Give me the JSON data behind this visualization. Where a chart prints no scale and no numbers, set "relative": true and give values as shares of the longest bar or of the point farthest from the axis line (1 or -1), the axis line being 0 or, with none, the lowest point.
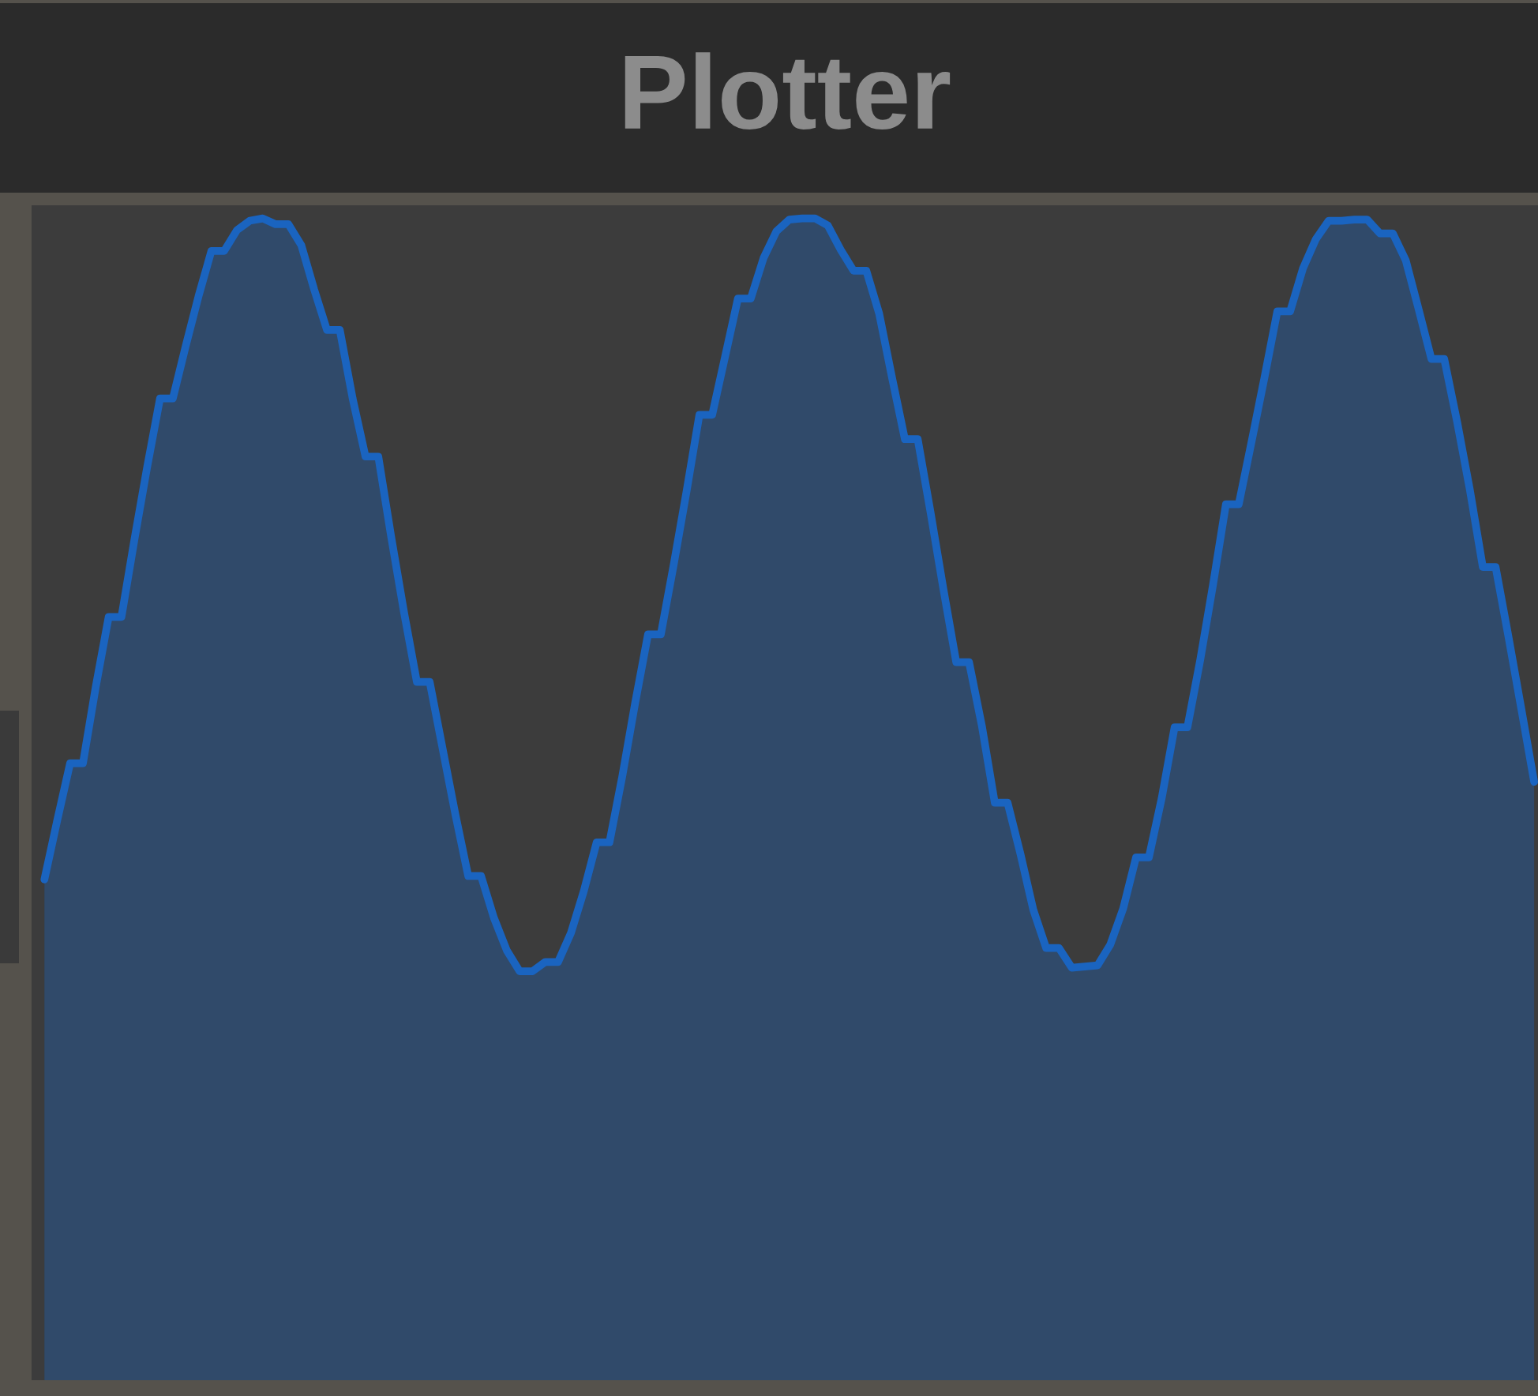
{
  "chart_data": {
    "type": "area",
    "title": "Plotter",
    "relative": true,
    "color": "#1a64c0",
    "categories": [
      null,
      null,
      null,
      null,
      null,
      null,
      null,
      null,
      null,
      null,
      null,
      null,
      null,
      null,
      null,
      null,
      null,
      null,
      null,
      null,
      null,
      null,
      null,
      null,
      null,
      null,
      null,
      null,
      null,
      null,
      null,
      null,
      null,
      null,
      null,
      null,
      null,
      null,
      null,
      null,
      null,
      null,
      null,
      null,
      null,
      null,
      null,
      null,
      null,
      null,
      null,
      null,
      null,
      null,
      null,
      null,
      null,
      null,
      null,
      null,
      null,
      null,
      null,
      null,
      null,
      null,
      null,
      null,
      null,
      null,
      null,
      null,
      null,
      null,
      null,
      null,
      null,
      null,
      null,
      null,
      null,
      null,
      null,
      null,
      null,
      null,
      null,
      null,
      null,
      null,
      null,
      null,
      null,
      null,
      null,
      null,
      null,
      null,
      null,
      null,
      null,
      null,
      null,
      null,
      null,
      null,
      null,
      null,
      null,
      null,
      null,
      null,
      null,
      null,
      null,
      null,
      null
    ],
    "values": [
      0.431,
      0.482,
      0.531,
      0.531,
      0.597,
      0.657,
      0.657,
      0.723,
      0.786,
      0.845,
      0.845,
      0.89,
      0.933,
      0.972,
      0.972,
      0.99,
      0.998,
      1,
      0.995,
      0.995,
      0.977,
      0.939,
      0.904,
      0.904,
      0.845,
      0.795,
      0.795,
      0.726,
      0.661,
      0.601,
      0.601,
      0.544,
      0.487,
      0.434,
      0.434,
      0.398,
      0.37,
      0.352,
      0.352,
      0.36,
      0.36,
      0.385,
      0.421,
      0.463,
      0.463,
      0.52,
      0.583,
      0.642,
      0.642,
      0.702,
      0.765,
      0.831,
      0.831,
      0.881,
      0.931,
      0.931,
      0.966,
      0.989,
      0.999,
      1,
      1,
      0.994,
      0.973,
      0.955,
      0.955,
      0.918,
      0.863,
      0.81,
      0.81,
      0.747,
      0.681,
      0.618,
      0.618,
      0.563,
      0.497,
      0.497,
      0.453,
      0.405,
      0.372,
      0.372,
      0.355,
      0.356,
      0.357,
      0.375,
      0.406,
      0.45,
      0.45,
      0.501,
      0.562,
      0.562,
      0.62,
      0.685,
      0.754,
      0.754,
      0.808,
      0.863,
      0.92,
      0.92,
      0.957,
      0.982,
      0.998,
      0.998,
      0.999,
      0.999,
      0.987,
      0.987,
      0.964,
      0.922,
      0.879,
      0.879,
      0.825,
      0.766,
      0.7,
      0.7,
      0.64,
      0.578,
      0.515
    ]
  }
}
